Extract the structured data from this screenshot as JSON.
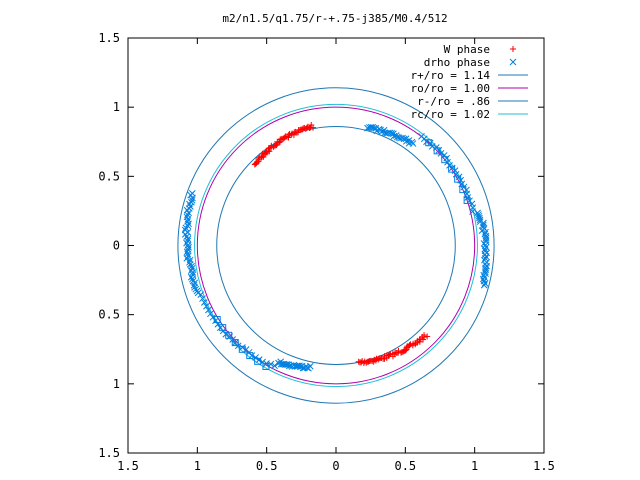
{
  "chart_data": {
    "type": "scatter",
    "title": "m2/n1.5/q1.75/r-+.75-j385/M0.4/512",
    "xlabel": "",
    "ylabel": "",
    "xlim": [
      -1.5,
      1.5
    ],
    "ylim": [
      -1.5,
      1.5
    ],
    "x_tick_labels": [
      "1.5",
      "1",
      "0.5",
      "0",
      "0.5",
      "1",
      "1.5"
    ],
    "x_tick_values": [
      -1.5,
      -1,
      -0.5,
      0,
      0.5,
      1,
      1.5
    ],
    "y_tick_labels": [
      "1.5",
      "1",
      "0.5",
      "0",
      "0.5",
      "1",
      "1.5"
    ],
    "y_tick_values": [
      1.5,
      1,
      0.5,
      0,
      -0.5,
      -1,
      -1.5
    ],
    "grid": false,
    "legend_position": "top-right",
    "series": [
      {
        "name": "W phase",
        "kind": "points",
        "marker": "plus",
        "color": "#ff0000",
        "arcs": [
          {
            "theta_start": 101,
            "theta_end": 135,
            "count": 60,
            "r_start": 0.88,
            "r_end": 0.83,
            "jitter": 0.012
          },
          {
            "theta_start": -79,
            "theta_end": -45,
            "count": 60,
            "r_start": 0.86,
            "r_end": 0.92,
            "jitter": 0.012
          }
        ]
      },
      {
        "name": "drho phase",
        "kind": "points",
        "marker": "cross",
        "color": "#0080e0",
        "arcs": [
          {
            "theta_start": 53,
            "theta_end": 75,
            "count": 30,
            "r_start": 0.92,
            "r_end": 0.88,
            "jitter": 0.01
          },
          {
            "theta_start": 14,
            "theta_end": 52,
            "count": 26,
            "r_start": 1.02,
            "r_end": 1.0,
            "jitter": 0.01
          },
          {
            "theta_start": -15,
            "theta_end": 13,
            "count": 40,
            "r_start": 1.1,
            "r_end": 1.06,
            "jitter": 0.012
          },
          {
            "theta_start": 160,
            "theta_end": 199,
            "count": 48,
            "r_start": 1.1,
            "r_end": 1.05,
            "jitter": 0.012
          },
          {
            "theta_start": 200,
            "theta_end": 243,
            "count": 26,
            "r_start": 1.04,
            "r_end": 0.98,
            "jitter": 0.008
          },
          {
            "theta_start": 244,
            "theta_end": 258,
            "count": 24,
            "r_start": 0.94,
            "r_end": 0.9,
            "jitter": 0.01
          }
        ],
        "squares": [
          {
            "theta_start": 19,
            "theta_end": 48,
            "count": 7,
            "r": 1.0
          },
          {
            "theta_start": 212,
            "theta_end": 240,
            "count": 8,
            "r": 1.01
          }
        ]
      },
      {
        "name": "r+/ro = 1.14",
        "kind": "circle",
        "r": 1.14,
        "color": "#1f78b4"
      },
      {
        "name": "ro/ro = 1.00",
        "kind": "circle",
        "r": 1.0,
        "color": "#b000b0"
      },
      {
        "name": "r-/ro = .86",
        "kind": "circle",
        "r": 0.86,
        "color": "#1f78b4"
      },
      {
        "name": "rc/ro = 1.02",
        "kind": "circle",
        "r": 1.02,
        "color": "#20c0d8"
      }
    ]
  }
}
